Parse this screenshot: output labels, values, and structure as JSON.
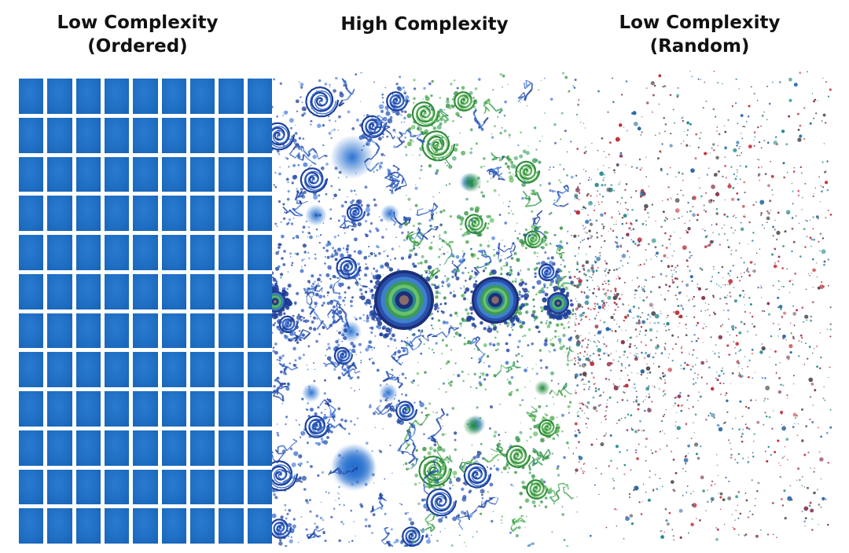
{
  "panels": [
    {
      "id": "ordered",
      "title": "Low Complexity\n(Ordered)"
    },
    {
      "id": "complex",
      "title": "High Complexity"
    },
    {
      "id": "random",
      "title": "Low Complexity\n(Random)"
    }
  ],
  "colors": {
    "grid_blue": "#1f6fc4",
    "fractal_blue": "#2a4fa8",
    "fractal_green": "#3a9a3a",
    "dot_red": "#c0303a",
    "dot_blue": "#2a6aa8",
    "dot_teal": "#2a8a8a"
  },
  "grid": {
    "columns": 9,
    "rows": 12
  }
}
